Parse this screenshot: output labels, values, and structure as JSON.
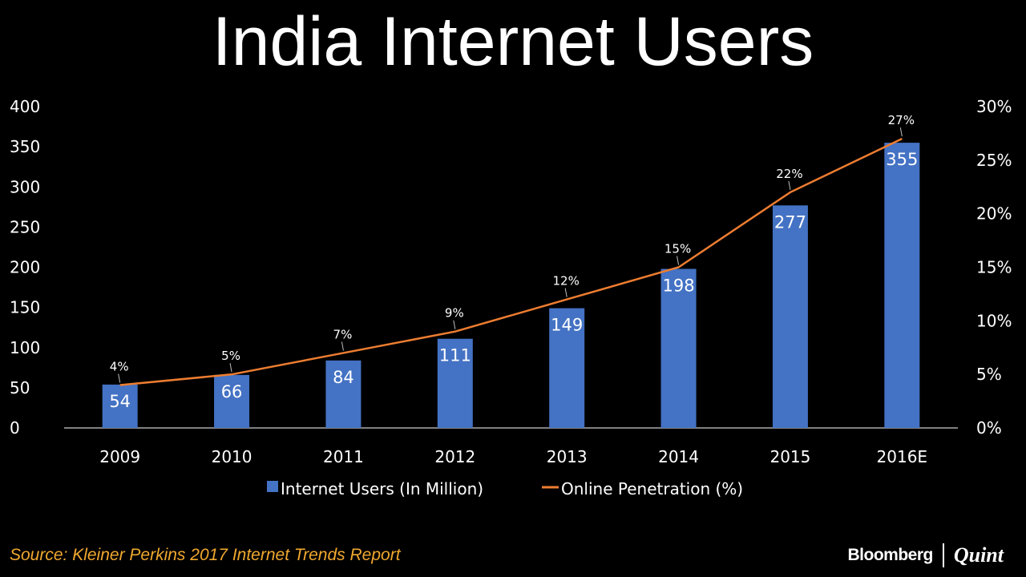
{
  "title": "India Internet Users",
  "source": "Source: Kleiner Perkins 2017 Internet Trends Report",
  "brand": {
    "left": "Bloomberg",
    "right": "Quint"
  },
  "colors": {
    "bar": "#4472c4",
    "line": "#ed7d31",
    "source": "#f0a830",
    "axis": "#ffffff"
  },
  "chart_data": {
    "type": "bar",
    "title": "India Internet Users",
    "categories": [
      "2009",
      "2010",
      "2011",
      "2012",
      "2013",
      "2014",
      "2015",
      "2016E"
    ],
    "series": [
      {
        "name": "Internet Users (In Million)",
        "type": "bar",
        "axis": "left",
        "values": [
          54,
          66,
          84,
          111,
          149,
          198,
          277,
          355
        ],
        "labels": [
          "54",
          "66",
          "84",
          "111",
          "149",
          "198",
          "277",
          "355"
        ]
      },
      {
        "name": "Online Penetration (%)",
        "type": "line",
        "axis": "right",
        "values": [
          4,
          5,
          7,
          9,
          12,
          15,
          22,
          27
        ],
        "labels": [
          "4%",
          "5%",
          "7%",
          "9%",
          "12%",
          "15%",
          "22%",
          "27%"
        ]
      }
    ],
    "ylim_left": [
      0,
      400
    ],
    "yticks_left": [
      "0",
      "50",
      "100",
      "150",
      "200",
      "250",
      "300",
      "350",
      "400"
    ],
    "ylim_right": [
      0,
      30
    ],
    "yticks_right": [
      "0%",
      "5%",
      "10%",
      "15%",
      "20%",
      "25%",
      "30%"
    ],
    "legend": [
      "Internet Users (In Million)",
      "Online Penetration (%)"
    ],
    "legend_position": "bottom",
    "grid": false
  }
}
